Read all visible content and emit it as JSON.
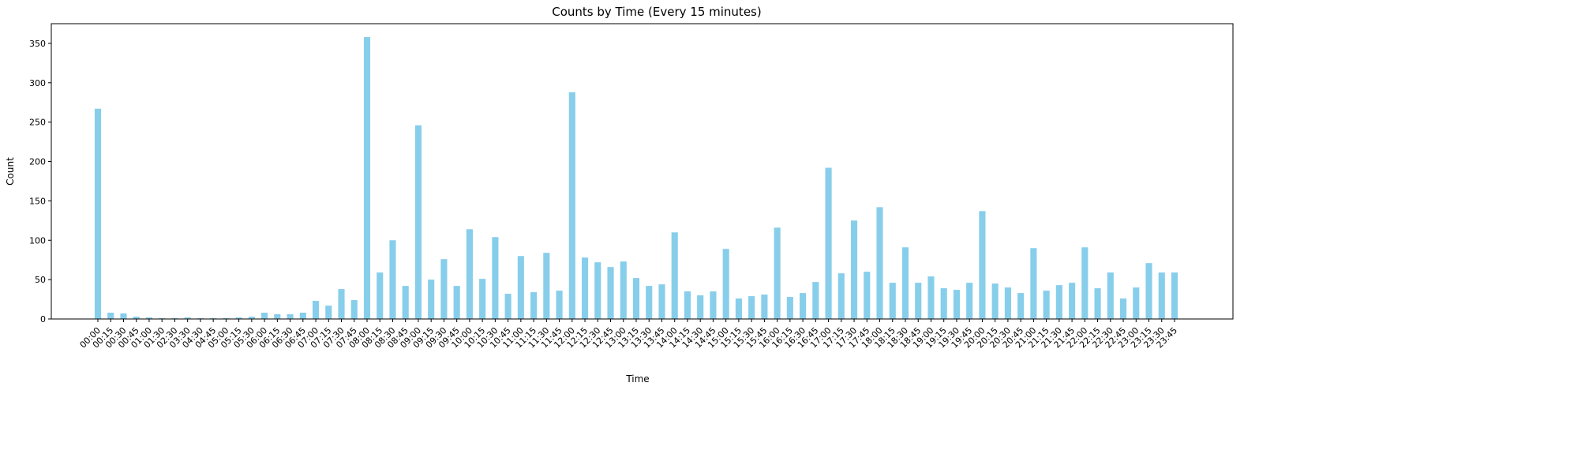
{
  "chart_data": {
    "type": "bar",
    "title": "Counts by Time (Every 15 minutes)",
    "xlabel": "Time",
    "ylabel": "Count",
    "ylim": [
      0,
      375
    ],
    "yticks": [
      0,
      50,
      100,
      150,
      200,
      250,
      300,
      350
    ],
    "grid": false,
    "bar_color": "#87ceeb",
    "categories": [
      "00:00",
      "00:15",
      "00:30",
      "00:45",
      "01:00",
      "01:30",
      "02:30",
      "03:30",
      "04:30",
      "04:45",
      "05:00",
      "05:15",
      "05:30",
      "06:00",
      "06:15",
      "06:30",
      "06:45",
      "07:00",
      "07:15",
      "07:30",
      "07:45",
      "08:00",
      "08:15",
      "08:30",
      "08:45",
      "09:00",
      "09:15",
      "09:30",
      "09:45",
      "10:00",
      "10:15",
      "10:30",
      "10:45",
      "11:00",
      "11:15",
      "11:30",
      "11:45",
      "12:00",
      "12:15",
      "12:30",
      "12:45",
      "13:00",
      "13:15",
      "13:30",
      "13:45",
      "14:00",
      "14:15",
      "14:30",
      "14:45",
      "15:00",
      "15:15",
      "15:30",
      "15:45",
      "16:00",
      "16:15",
      "16:30",
      "16:45",
      "17:00",
      "17:15",
      "17:30",
      "17:45",
      "18:00",
      "18:15",
      "18:30",
      "18:45",
      "19:00",
      "19:15",
      "19:30",
      "19:45",
      "20:00",
      "20:15",
      "20:30",
      "20:45",
      "21:00",
      "21:15",
      "21:30",
      "21:45",
      "22:00",
      "22:15",
      "22:30",
      "22:45",
      "23:00",
      "23:15",
      "23:30",
      "23:45"
    ],
    "values": [
      267,
      8,
      7,
      3,
      2,
      1,
      1,
      2,
      1,
      1,
      1,
      2,
      3,
      8,
      6,
      6,
      8,
      23,
      17,
      38,
      24,
      358,
      59,
      100,
      42,
      246,
      50,
      76,
      42,
      114,
      51,
      104,
      32,
      80,
      34,
      84,
      36,
      288,
      78,
      72,
      66,
      73,
      52,
      42,
      44,
      110,
      35,
      30,
      35,
      89,
      26,
      29,
      31,
      116,
      28,
      33,
      47,
      192,
      58,
      125,
      60,
      142,
      46,
      91,
      46,
      54,
      39,
      37,
      46,
      137,
      45,
      40,
      33,
      90,
      36,
      43,
      46,
      91,
      39,
      59,
      26,
      40,
      71,
      59,
      59
    ]
  }
}
